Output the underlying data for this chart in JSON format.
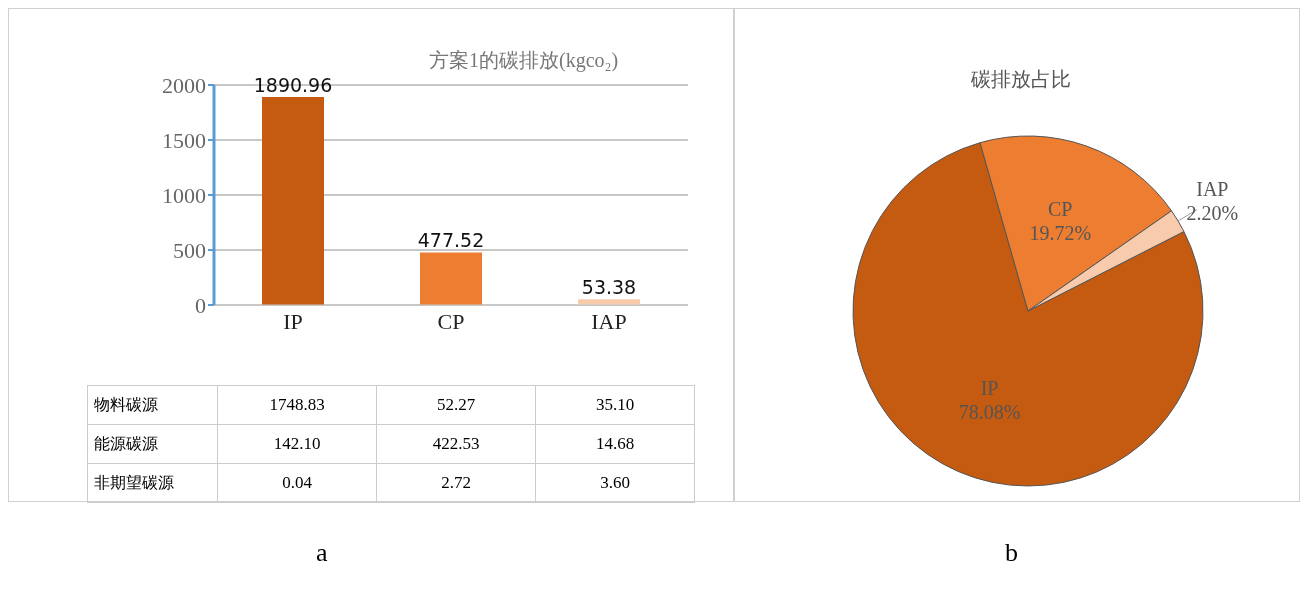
{
  "chart_data": [
    {
      "type": "bar",
      "title": "方案1的碳排放(kgco₂)",
      "categories": [
        "IP",
        "CP",
        "IAP"
      ],
      "values": [
        1890.96,
        477.52,
        53.38
      ],
      "colors": [
        "#c55a11",
        "#ed7d31",
        "#f8cbad"
      ],
      "ylim": [
        0,
        2000
      ],
      "yticks": [
        0,
        500,
        1000,
        1500,
        2000
      ],
      "grid": "y",
      "data_labels": true
    },
    {
      "type": "other",
      "y_categories": [
        "物料碳源",
        "能源碳源",
        "非期望碳源"
      ],
      "cell_labels": [
        [
          "1748.83",
          "52.27",
          "35.10"
        ],
        [
          "142.10",
          "422.53",
          "14.68"
        ],
        [
          "0.04",
          "2.72",
          "3.60"
        ]
      ],
      "annotations": [
        "a"
      ]
    },
    {
      "type": "pie",
      "title": "碳排放占比",
      "categories": [
        "IP",
        "CP",
        "IAP"
      ],
      "values": [
        78.08,
        19.72,
        2.2
      ],
      "value_labels": [
        "78.08%",
        "19.72%",
        "2.20%"
      ],
      "colors": [
        "#c55a11",
        "#ed7d31",
        "#f8cbad"
      ],
      "annotations": [
        "b"
      ]
    }
  ]
}
